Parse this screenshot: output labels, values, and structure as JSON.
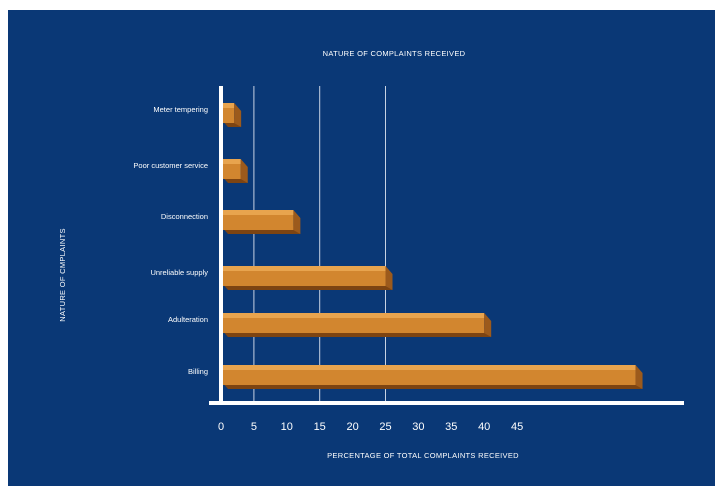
{
  "chart_data": {
    "type": "bar",
    "orientation": "horizontal",
    "title": "NATURE OF COMPLAINTS RECEIVED",
    "xlabel": "PERCENTAGE OF TOTAL COMPLAINTS RECEIVED",
    "ylabel": "NATURE OF CMPLAINTS",
    "categories": [
      "Meter tempering",
      "Poor customer service",
      "Disconnection",
      "Unreliable supply",
      "Adulteration",
      "Billing"
    ],
    "values": [
      2,
      3,
      11,
      25,
      40,
      63
    ],
    "xlim": [
      0,
      70
    ],
    "xticks": [
      "0",
      "5",
      "10",
      "15",
      "20",
      "25",
      "30",
      "35",
      "40",
      "45"
    ],
    "gridlines_at": [
      5,
      15,
      25
    ],
    "colors": {
      "background": "#0a3876",
      "bar_front": "#d2862f",
      "bar_top": "#e8a44e",
      "bar_side": "#9c5a1c",
      "axis": "#ffffff"
    }
  }
}
